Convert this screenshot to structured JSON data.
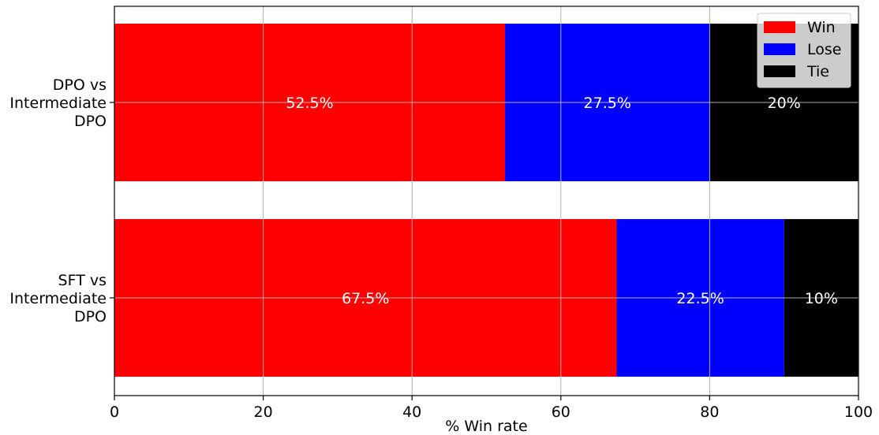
{
  "chart_data": {
    "type": "bar",
    "orientation": "horizontal",
    "stacked": true,
    "categories": [
      [
        "DPO vs",
        "Intermediate",
        "DPO"
      ],
      [
        "SFT vs",
        "Intermediate",
        "DPO"
      ]
    ],
    "series": [
      {
        "name": "Win",
        "color": "#ff0000",
        "values": [
          52.5,
          67.5
        ],
        "labels": [
          "52.5%",
          "67.5%"
        ]
      },
      {
        "name": "Lose",
        "color": "#0000ff",
        "values": [
          27.5,
          22.5
        ],
        "labels": [
          "27.5%",
          "22.5%"
        ]
      },
      {
        "name": "Tie",
        "color": "#000000",
        "values": [
          20,
          10
        ],
        "labels": [
          "20%",
          "10%"
        ]
      }
    ],
    "xlabel": "% Win rate",
    "ylabel": "",
    "xlim": [
      0,
      100
    ],
    "xticks": [
      "0",
      "20",
      "40",
      "60",
      "80",
      "100"
    ],
    "grid": true,
    "legend_position": "top-right"
  }
}
